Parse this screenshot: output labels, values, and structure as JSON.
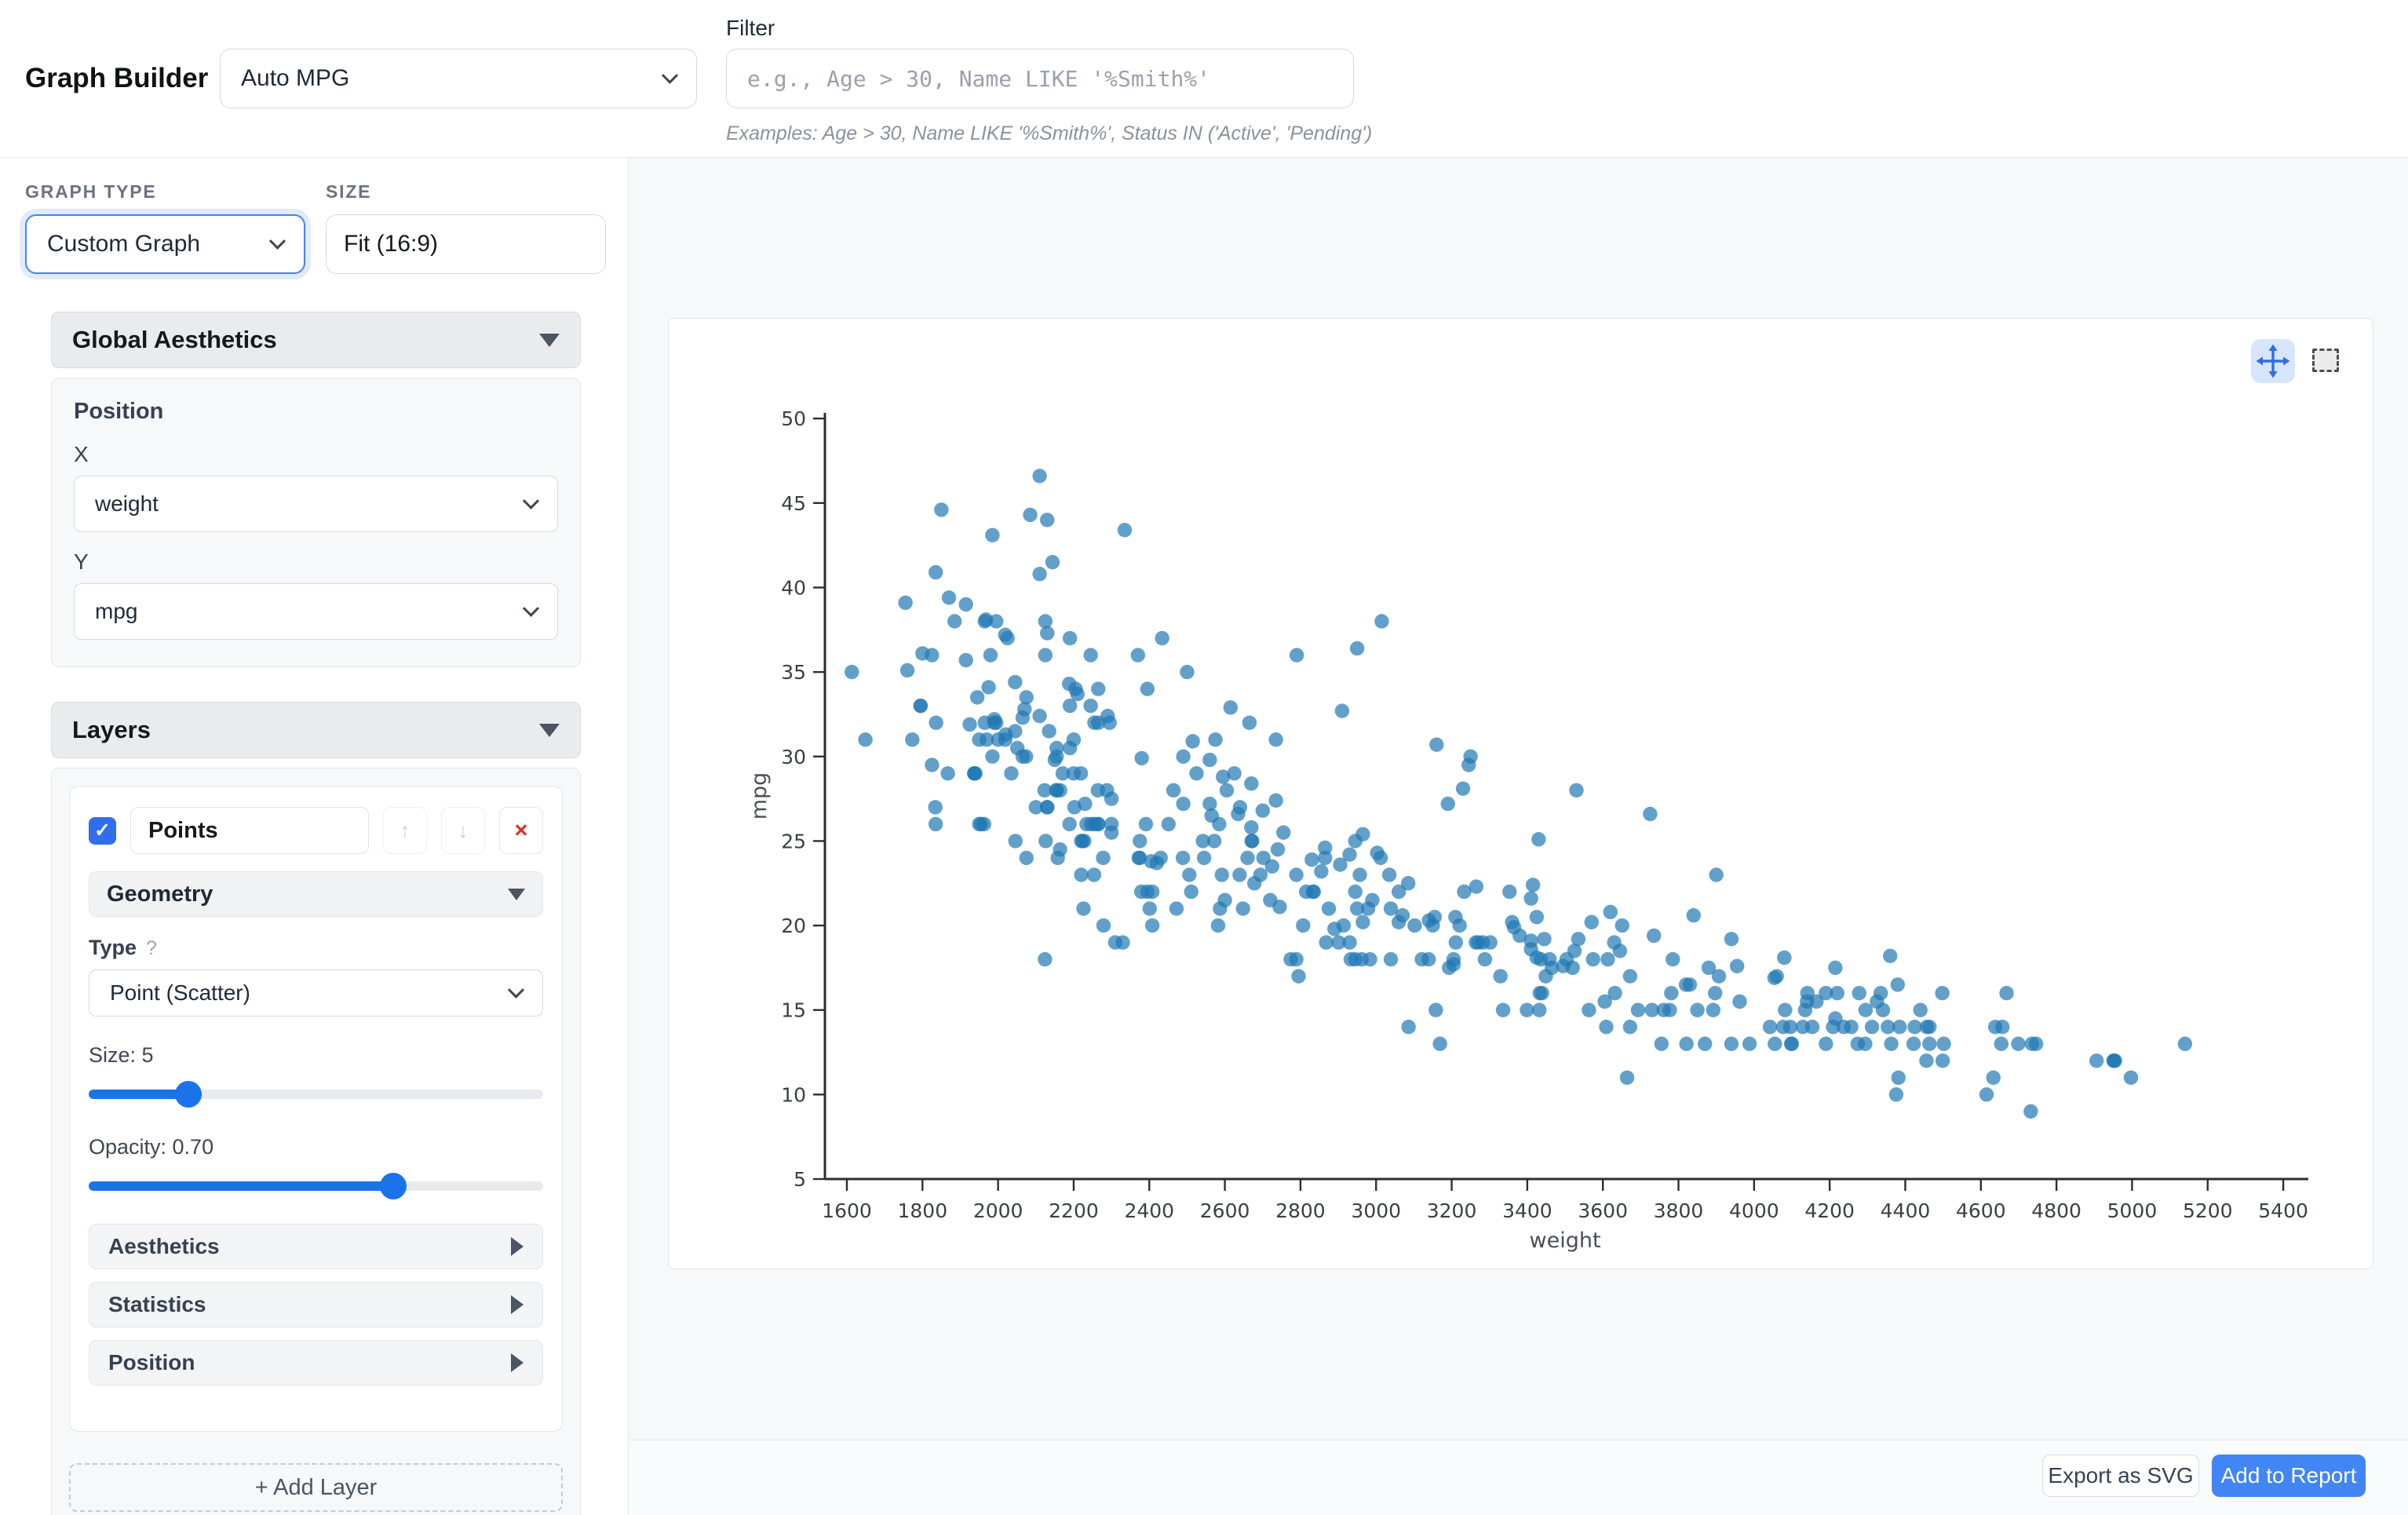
{
  "header": {
    "title": "Graph Builder",
    "dataset": "Auto MPG",
    "filter_label": "Filter",
    "filter_placeholder": "e.g., Age > 30, Name LIKE '%Smith%'",
    "filter_examples": "Examples: Age > 30, Name LIKE '%Smith%', Status IN ('Active', 'Pending')"
  },
  "sidebar": {
    "graph_type_label": "GRAPH TYPE",
    "graph_type": "Custom Graph",
    "size_label": "SIZE",
    "size_value": "Fit (16:9)",
    "global": {
      "title": "Global Aesthetics",
      "position": "Position",
      "x_label": "X",
      "x": "weight",
      "y_label": "Y",
      "y": "mpg"
    },
    "layers": {
      "title": "Layers",
      "layer": {
        "name": "Points",
        "check_glyph": "✓",
        "up_glyph": "↑",
        "down_glyph": "↓",
        "remove_glyph": "×",
        "geometry": "Geometry",
        "type_label": "Type",
        "help_glyph": "?",
        "type": "Point (Scatter)",
        "size": {
          "label": "Size: 5",
          "percent": 22
        },
        "opacity": {
          "label": "Opacity: 0.70",
          "percent": 67
        },
        "sections": {
          "aesthetics": "Aesthetics",
          "statistics": "Statistics",
          "position": "Position"
        }
      },
      "add": "+ Add Layer"
    }
  },
  "footer": {
    "export": "Export as SVG",
    "add_report": "Add to Report"
  },
  "colors": {
    "accent": "#4285f4",
    "point": "#1f77b4",
    "danger": "#d93025"
  },
  "chart_data": {
    "type": "scatter",
    "title": "",
    "xlabel": "weight",
    "ylabel": "mpg",
    "x_ticks": [
      1600,
      1800,
      2000,
      2200,
      2400,
      2600,
      2800,
      3000,
      3200,
      3400,
      3600,
      3800,
      4000,
      4200,
      4400,
      4600,
      4800,
      5000,
      5200,
      5400
    ],
    "y_ticks": [
      5,
      10,
      15,
      20,
      25,
      30,
      35,
      40,
      45,
      50
    ],
    "xlim": [
      1542,
      5466
    ],
    "ylim": [
      5,
      50.3
    ],
    "grid": false,
    "legend": false,
    "point_color": "#1f77b4",
    "point_opacity": 0.7,
    "points": [
      [
        3504,
        18
      ],
      [
        3693,
        15
      ],
      [
        3436,
        18
      ],
      [
        3433,
        16
      ],
      [
        3449,
        17
      ],
      [
        4341,
        15
      ],
      [
        4354,
        14
      ],
      [
        4312,
        14
      ],
      [
        4425,
        14
      ],
      [
        3850,
        15
      ],
      [
        3563,
        15
      ],
      [
        3609,
        14
      ],
      [
        3761,
        15
      ],
      [
        3086,
        14
      ],
      [
        2372,
        24
      ],
      [
        2833,
        22
      ],
      [
        2774,
        18
      ],
      [
        2587,
        21
      ],
      [
        2130,
        27
      ],
      [
        1835,
        26
      ],
      [
        2672,
        25
      ],
      [
        2430,
        24
      ],
      [
        2375,
        25
      ],
      [
        2234,
        26
      ],
      [
        2648,
        21
      ],
      [
        4615,
        10
      ],
      [
        4376,
        10
      ],
      [
        4382,
        11
      ],
      [
        4732,
        9
      ],
      [
        2130,
        27
      ],
      [
        2264,
        28
      ],
      [
        2228,
        25
      ],
      [
        2046,
        25
      ],
      [
        2375,
        24
      ],
      [
        3439,
        16
      ],
      [
        3329,
        17
      ],
      [
        3302,
        19
      ],
      [
        3288,
        18
      ],
      [
        4209,
        14
      ],
      [
        4464,
        14
      ],
      [
        4154,
        14
      ],
      [
        4096,
        14
      ],
      [
        4955,
        12
      ],
      [
        4746,
        13
      ],
      [
        5140,
        13
      ],
      [
        2962,
        18
      ],
      [
        2408,
        22
      ],
      [
        3282,
        19
      ],
      [
        3139,
        18
      ],
      [
        2220,
        23
      ],
      [
        2123,
        28
      ],
      [
        2074,
        30
      ],
      [
        2065,
        30
      ],
      [
        1773,
        31
      ],
      [
        1613,
        35
      ],
      [
        1834,
        27
      ],
      [
        1955,
        26
      ],
      [
        2278,
        24
      ],
      [
        2126,
        25
      ],
      [
        2254,
        23
      ],
      [
        2408,
        20
      ],
      [
        2226,
        21
      ],
      [
        4274,
        13
      ],
      [
        4385,
        14
      ],
      [
        4135,
        15
      ],
      [
        4129,
        14
      ],
      [
        3672,
        17
      ],
      [
        4633,
        11
      ],
      [
        4502,
        13
      ],
      [
        4456,
        12
      ],
      [
        4422,
        13
      ],
      [
        2330,
        19
      ],
      [
        3892,
        15
      ],
      [
        4098,
        13
      ],
      [
        4294,
        13
      ],
      [
        4077,
        14
      ],
      [
        2933,
        18
      ],
      [
        2511,
        22
      ],
      [
        2979,
        21
      ],
      [
        2189,
        26
      ],
      [
        2395,
        22
      ],
      [
        2288,
        28
      ],
      [
        2506,
        23
      ],
      [
        2164,
        28
      ],
      [
        2100,
        27
      ],
      [
        4100,
        13
      ],
      [
        3672,
        14
      ],
      [
        3988,
        13
      ],
      [
        4042,
        14
      ],
      [
        3777,
        15
      ],
      [
        4952,
        12
      ],
      [
        4464,
        13
      ],
      [
        4363,
        13
      ],
      [
        4237,
        14
      ],
      [
        4735,
        13
      ],
      [
        4951,
        12
      ],
      [
        3821,
        13
      ],
      [
        3121,
        18
      ],
      [
        3205,
        18
      ],
      [
        2945,
        18
      ],
      [
        3039,
        18
      ],
      [
        2789,
        23
      ],
      [
        1950,
        26
      ],
      [
        4997,
        11
      ],
      [
        4906,
        12
      ],
      [
        4654,
        13
      ],
      [
        4499,
        12
      ],
      [
        2789,
        18
      ],
      [
        2279,
        20
      ],
      [
        2401,
        21
      ],
      [
        2379,
        22
      ],
      [
        2124,
        18
      ],
      [
        2310,
        19
      ],
      [
        2472,
        21
      ],
      [
        2265,
        26
      ],
      [
        4082,
        15
      ],
      [
        4278,
        16
      ],
      [
        1867,
        29
      ],
      [
        2158,
        24
      ],
      [
        2582,
        20
      ],
      [
        2868,
        19
      ],
      [
        3399,
        15
      ],
      [
        2660,
        24
      ],
      [
        2807,
        20
      ],
      [
        3664,
        11
      ],
      [
        3102,
        20
      ],
      [
        2875,
        21
      ],
      [
        2901,
        19
      ],
      [
        3336,
        15
      ],
      [
        1950,
        31
      ],
      [
        2451,
        26
      ],
      [
        1836,
        32
      ],
      [
        2542,
        25
      ],
      [
        3781,
        16
      ],
      [
        3632,
        16
      ],
      [
        3613,
        18
      ],
      [
        4141,
        16
      ],
      [
        4699,
        13
      ],
      [
        4457,
        14
      ],
      [
        4638,
        14
      ],
      [
        4257,
        14
      ],
      [
        2219,
        29
      ],
      [
        1963,
        26
      ],
      [
        2300,
        26
      ],
      [
        2019,
        31
      ],
      [
        2255,
        32
      ],
      [
        2154,
        28
      ],
      [
        2075,
        24
      ],
      [
        2246,
        26
      ],
      [
        2489,
        24
      ],
      [
        2391,
        26
      ],
      [
        2000,
        31
      ],
      [
        3264,
        19
      ],
      [
        3459,
        18
      ],
      [
        3432,
        15
      ],
      [
        3158,
        15
      ],
      [
        4668,
        16
      ],
      [
        4440,
        15
      ],
      [
        4498,
        16
      ],
      [
        4657,
        14
      ],
      [
        3907,
        17
      ],
      [
        3897,
        16
      ],
      [
        3730,
        15
      ],
      [
        3785,
        18
      ],
      [
        3039,
        21
      ],
      [
        3221,
        20
      ],
      [
        3169,
        13
      ],
      [
        2171,
        29
      ],
      [
        2639,
        23
      ],
      [
        2914,
        20
      ],
      [
        2592,
        23
      ],
      [
        2702,
        24
      ],
      [
        2223,
        25
      ],
      [
        2545,
        24
      ],
      [
        2984,
        18
      ],
      [
        1937,
        29
      ],
      [
        3211,
        19
      ],
      [
        2694,
        23
      ],
      [
        2957,
        23
      ],
      [
        2945,
        22
      ],
      [
        2671,
        25
      ],
      [
        1795,
        33
      ],
      [
        2464,
        28
      ],
      [
        2220,
        25
      ],
      [
        2572,
        25
      ],
      [
        2255,
        26
      ],
      [
        2202,
        27
      ],
      [
        4215,
        17.5
      ],
      [
        4190,
        16
      ],
      [
        3962,
        15.5
      ],
      [
        4215,
        14.5
      ],
      [
        3233,
        22
      ],
      [
        3353,
        22
      ],
      [
        3012,
        24
      ],
      [
        3085,
        22.5
      ],
      [
        2035,
        29
      ],
      [
        2164,
        24.5
      ],
      [
        1937,
        29
      ],
      [
        1795,
        33
      ],
      [
        3651,
        20
      ],
      [
        3574,
        18
      ],
      [
        3645,
        18.5
      ],
      [
        3193,
        17.5
      ],
      [
        1825,
        29.5
      ],
      [
        1990,
        32
      ],
      [
        2155,
        28
      ],
      [
        2565,
        26.5
      ],
      [
        3150,
        20
      ],
      [
        3940,
        13
      ],
      [
        3270,
        19
      ],
      [
        2930,
        19
      ],
      [
        3820,
        16.5
      ],
      [
        4380,
        16.5
      ],
      [
        4055,
        13
      ],
      [
        3870,
        13
      ],
      [
        3755,
        13
      ],
      [
        2045,
        31.5
      ],
      [
        2155,
        30
      ],
      [
        1825,
        36
      ],
      [
        2300,
        25.5
      ],
      [
        1945,
        33.5
      ],
      [
        3880,
        17.5
      ],
      [
        4060,
        17
      ],
      [
        4140,
        15.5
      ],
      [
        4295,
        15
      ],
      [
        3520,
        17.5
      ],
      [
        3425,
        20.5
      ],
      [
        3630,
        19
      ],
      [
        3525,
        18.5
      ],
      [
        4220,
        16
      ],
      [
        4165,
        15.5
      ],
      [
        4325,
        15.5
      ],
      [
        4335,
        16
      ],
      [
        1940,
        29
      ],
      [
        2740,
        24.5
      ],
      [
        2265,
        26
      ],
      [
        2755,
        25.5
      ],
      [
        2051,
        30.5
      ],
      [
        2075,
        33.5
      ],
      [
        1985,
        30
      ],
      [
        2190,
        30.5
      ],
      [
        2815,
        22
      ],
      [
        2600,
        21.5
      ],
      [
        2720,
        21.5
      ],
      [
        1985,
        43.1
      ],
      [
        1800,
        36.1
      ],
      [
        2070,
        32.8
      ],
      [
        1870,
        39.4
      ],
      [
        3365,
        19.9
      ],
      [
        3735,
        19.4
      ],
      [
        3570,
        20.2
      ],
      [
        3535,
        19.2
      ],
      [
        3155,
        20.5
      ],
      [
        2965,
        20.2
      ],
      [
        3430,
        25.1
      ],
      [
        3210,
        20.5
      ],
      [
        3380,
        19.4
      ],
      [
        3070,
        20.6
      ],
      [
        3620,
        20.8
      ],
      [
        3410,
        18.6
      ],
      [
        3425,
        18.1
      ],
      [
        3445,
        19.2
      ],
      [
        3205,
        17.7
      ],
      [
        4080,
        18.1
      ],
      [
        2155,
        30.5
      ],
      [
        2560,
        27.2
      ],
      [
        2300,
        27.5
      ],
      [
        2230,
        27.2
      ],
      [
        2515,
        30.9
      ],
      [
        2745,
        21.1
      ],
      [
        2855,
        23.2
      ],
      [
        2405,
        23.8
      ],
      [
        2830,
        23.9
      ],
      [
        3140,
        20.3
      ],
      [
        2795,
        17
      ],
      [
        3410,
        21.6
      ],
      [
        1990,
        32.2
      ],
      [
        2135,
        31.5
      ],
      [
        3245,
        29.5
      ],
      [
        2990,
        21.5
      ],
      [
        2890,
        19.8
      ],
      [
        3265,
        22.3
      ],
      [
        3360,
        20.2
      ],
      [
        3840,
        20.6
      ],
      [
        3725,
        26.6
      ],
      [
        3955,
        17.6
      ],
      [
        3830,
        16.5
      ],
      [
        4360,
        18.2
      ],
      [
        4054,
        16.9
      ],
      [
        3605,
        15.5
      ],
      [
        3940,
        19.2
      ],
      [
        1925,
        31.9
      ],
      [
        1975,
        34.1
      ],
      [
        1915,
        35.7
      ],
      [
        2110,
        46.6
      ],
      [
        1850,
        44.6
      ],
      [
        2085,
        44.3
      ],
      [
        2335,
        43.4
      ],
      [
        2144,
        41.5
      ],
      [
        2110,
        40.8
      ],
      [
        1835,
        40.9
      ],
      [
        2130,
        44
      ],
      [
        1968,
        38.1
      ],
      [
        2019,
        37.2
      ],
      [
        2434,
        37
      ],
      [
        1755,
        39.1
      ],
      [
        1885,
        38
      ],
      [
        1760,
        35.1
      ],
      [
        2065,
        32.3
      ],
      [
        2110,
        32.4
      ],
      [
        1915,
        39
      ],
      [
        2910,
        32.7
      ],
      [
        2420,
        23.7
      ],
      [
        2500,
        35
      ],
      [
        2905,
        23.6
      ],
      [
        2290,
        32.4
      ],
      [
        2605,
        28
      ],
      [
        2640,
        27
      ],
      [
        2395,
        34
      ],
      [
        2575,
        31
      ],
      [
        2525,
        29
      ],
      [
        2735,
        31
      ],
      [
        2865,
        24
      ],
      [
        3035,
        23
      ],
      [
        1980,
        36
      ],
      [
        2025,
        37
      ],
      [
        1970,
        31
      ],
      [
        2125,
        38
      ],
      [
        2125,
        36
      ],
      [
        2205,
        34
      ],
      [
        2245,
        36
      ],
      [
        1965,
        32
      ],
      [
        1965,
        38
      ],
      [
        1995,
        32
      ],
      [
        2945,
        25
      ],
      [
        3015,
        38
      ],
      [
        2585,
        26
      ],
      [
        2835,
        22
      ],
      [
        2665,
        32
      ],
      [
        2370,
        36
      ],
      [
        2950,
        36.4
      ],
      [
        2790,
        36
      ],
      [
        2295,
        32
      ],
      [
        2625,
        29
      ],
      [
        3060,
        22
      ],
      [
        3230,
        28.1
      ],
      [
        3250,
        30
      ],
      [
        3900,
        23
      ],
      [
        2965,
        25.4
      ],
      [
        2930,
        24.2
      ],
      [
        3415,
        22.4
      ],
      [
        3060,
        20.2
      ],
      [
        3495,
        17.6
      ],
      [
        2595,
        28.8
      ],
      [
        2700,
        26.8
      ],
      [
        2735,
        27.4
      ],
      [
        2865,
        24.6
      ],
      [
        3003,
        24.3
      ],
      [
        3410,
        19.1
      ],
      [
        2670,
        28.4
      ],
      [
        2130,
        37.3
      ],
      [
        2188,
        34.3
      ],
      [
        2560,
        29.8
      ],
      [
        2615,
        32.9
      ],
      [
        2190,
        37
      ],
      [
        2200,
        31
      ],
      [
        2265,
        34
      ],
      [
        2190,
        33
      ],
      [
        2265,
        32
      ],
      [
        1995,
        38
      ],
      [
        2490,
        30
      ],
      [
        2635,
        26.6
      ],
      [
        2670,
        25.8
      ],
      [
        2725,
        23.5
      ],
      [
        2490,
        27.2
      ],
      [
        2045,
        34.4
      ],
      [
        2380,
        29.9
      ],
      [
        2210,
        33.7
      ],
      [
        3190,
        27.2
      ],
      [
        3160,
        30.7
      ],
      [
        3530,
        28
      ],
      [
        2245,
        33
      ],
      [
        2020,
        31.3
      ],
      [
        2200,
        29
      ],
      [
        2150,
        29.8
      ],
      [
        2678,
        22.5
      ],
      [
        3465,
        17.5
      ],
      [
        1649,
        31
      ],
      [
        4190,
        13
      ],
      [
        2950,
        21
      ]
    ]
  }
}
